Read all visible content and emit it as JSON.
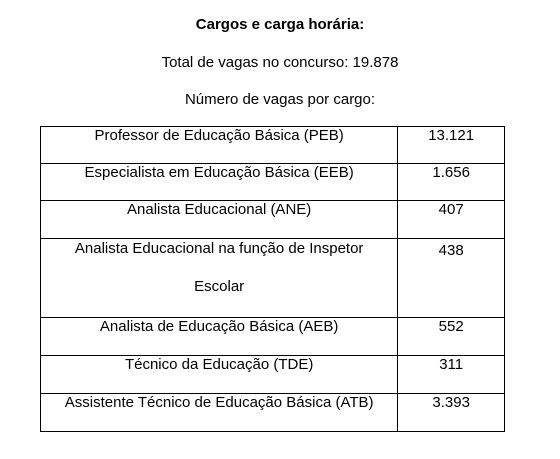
{
  "title": "Cargos e carga horária:",
  "total": "Total de vagas no concurso: 19.878",
  "subtitle": "Número de vagas por cargo:",
  "rows": [
    {
      "cargo": "Professor de Educação Básica (PEB)",
      "vagas": "13.121"
    },
    {
      "cargo": "Especialista em Educação Básica (EEB)",
      "vagas": "1.656"
    },
    {
      "cargo": "Analista Educacional (ANE)",
      "vagas": "407"
    },
    {
      "cargo_line1": "Analista Educacional na função de Inspetor",
      "cargo_line2": "Escolar",
      "vagas": "438"
    },
    {
      "cargo": "Analista de Educação Básica (AEB)",
      "vagas": "552"
    },
    {
      "cargo": "Técnico da Educação (TDE)",
      "vagas": "311"
    },
    {
      "cargo": "Assistente Técnico de Educação Básica (ATB)",
      "vagas": "3.393"
    }
  ]
}
